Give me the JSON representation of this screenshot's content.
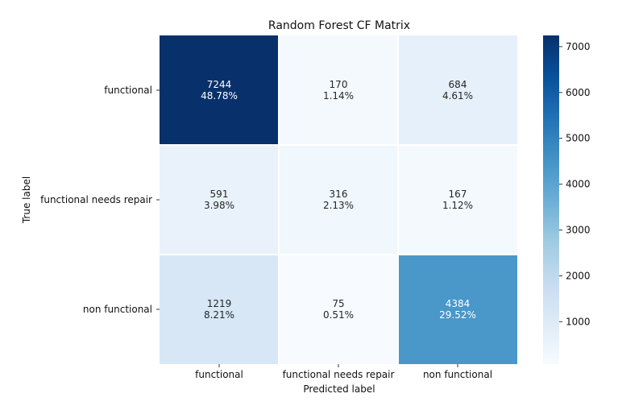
{
  "chart_data": {
    "type": "heatmap",
    "title": "Random Forest CF Matrix",
    "xlabel": "Predicted label",
    "ylabel": "True label",
    "x_categories": [
      "functional",
      "functional needs repair",
      "non functional"
    ],
    "y_categories": [
      "functional",
      "functional needs repair",
      "non functional"
    ],
    "values": [
      [
        7244,
        170,
        684
      ],
      [
        591,
        316,
        167
      ],
      [
        1219,
        75,
        4384
      ]
    ],
    "percent_labels": [
      [
        "48.78%",
        "1.14%",
        "4.61%"
      ],
      [
        "3.98%",
        "2.13%",
        "1.12%"
      ],
      [
        "8.21%",
        "0.51%",
        "29.52%"
      ]
    ],
    "colorbar": {
      "colormap": "Blues",
      "vmin": 75,
      "vmax": 7244,
      "ticks": [
        1000,
        2000,
        3000,
        4000,
        5000,
        6000,
        7000
      ]
    },
    "grid": false,
    "cell_separators": "white"
  }
}
